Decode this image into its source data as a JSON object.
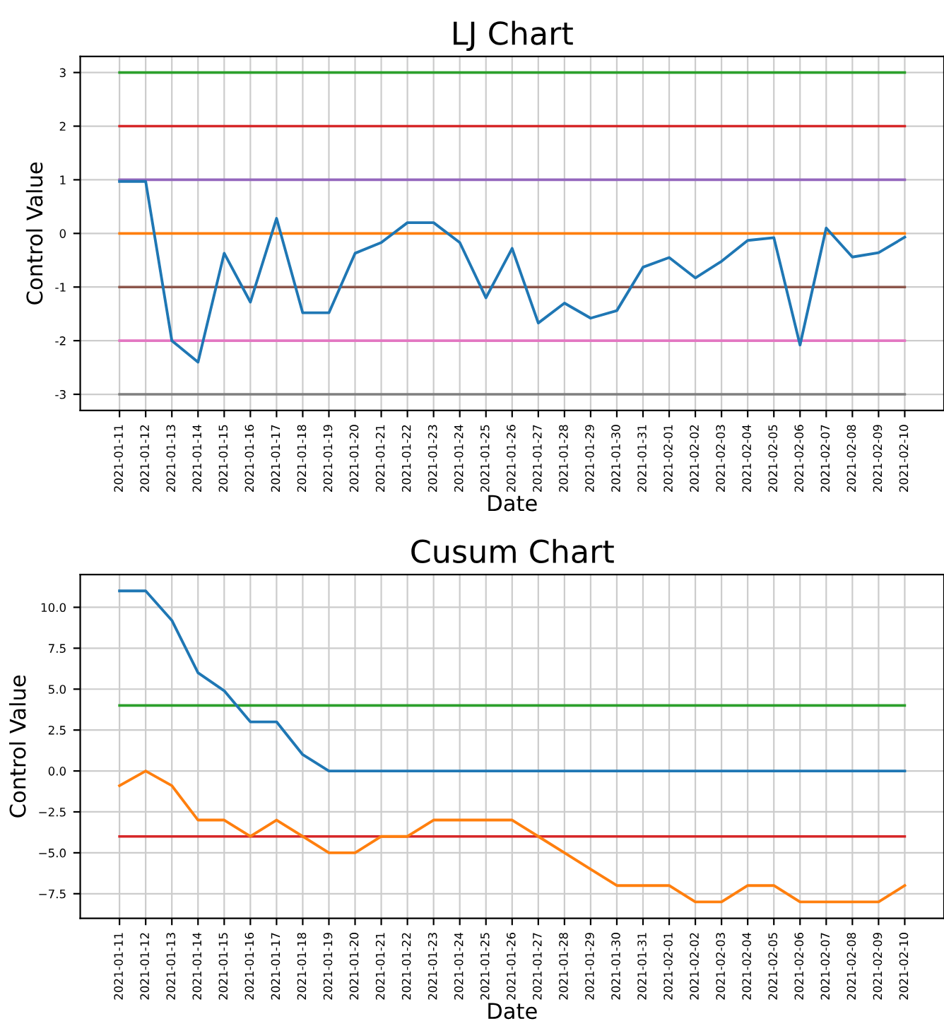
{
  "chart_data": [
    {
      "type": "line",
      "title": "LJ Chart",
      "xlabel": "Date",
      "ylabel": "Control Value",
      "categories": [
        "2021-01-11",
        "2021-01-12",
        "2021-01-13",
        "2021-01-14",
        "2021-01-15",
        "2021-01-16",
        "2021-01-17",
        "2021-01-18",
        "2021-01-19",
        "2021-01-20",
        "2021-01-21",
        "2021-01-22",
        "2021-01-23",
        "2021-01-24",
        "2021-01-25",
        "2021-01-26",
        "2021-01-27",
        "2021-01-28",
        "2021-01-29",
        "2021-01-30",
        "2021-01-31",
        "2021-02-01",
        "2021-02-02",
        "2021-02-03",
        "2021-02-04",
        "2021-02-05",
        "2021-02-06",
        "2021-02-07",
        "2021-02-08",
        "2021-02-09",
        "2021-02-10"
      ],
      "series": [
        {
          "color": "#1f77b4",
          "values": [
            0.97,
            0.97,
            -2.0,
            -2.4,
            -0.37,
            -1.28,
            0.28,
            -1.48,
            -1.48,
            -0.37,
            -0.17,
            0.2,
            0.2,
            -0.17,
            -1.2,
            -0.28,
            -1.67,
            -1.3,
            -1.58,
            -1.44,
            -0.63,
            -0.45,
            -0.83,
            -0.52,
            -0.13,
            -0.08,
            -2.08,
            0.1,
            -0.44,
            -0.36,
            -0.07
          ]
        }
      ],
      "ref_lines": [
        {
          "axis": "y",
          "value": 3,
          "color": "#2ca02c"
        },
        {
          "axis": "y",
          "value": 2,
          "color": "#d62728"
        },
        {
          "axis": "y",
          "value": 1,
          "color": "#9467bd"
        },
        {
          "axis": "y",
          "value": 0,
          "color": "#ff7f0e"
        },
        {
          "axis": "y",
          "value": -1,
          "color": "#8c564b"
        },
        {
          "axis": "y",
          "value": -2,
          "color": "#e377c2"
        },
        {
          "axis": "y",
          "value": -3,
          "color": "#7f7f7f"
        }
      ],
      "ylim": [
        -3.3,
        3.3
      ],
      "yticks": [
        -3,
        -2,
        -1,
        0,
        1,
        2,
        3
      ],
      "grid": true
    },
    {
      "type": "line",
      "title": "Cusum Chart",
      "xlabel": "Date",
      "ylabel": "Control Value",
      "categories": [
        "2021-01-11",
        "2021-01-12",
        "2021-01-13",
        "2021-01-14",
        "2021-01-15",
        "2021-01-16",
        "2021-01-17",
        "2021-01-18",
        "2021-01-19",
        "2021-01-20",
        "2021-01-21",
        "2021-01-22",
        "2021-01-23",
        "2021-01-24",
        "2021-01-25",
        "2021-01-26",
        "2021-01-27",
        "2021-01-28",
        "2021-01-29",
        "2021-01-30",
        "2021-01-31",
        "2021-02-01",
        "2021-02-02",
        "2021-02-03",
        "2021-02-04",
        "2021-02-05",
        "2021-02-06",
        "2021-02-07",
        "2021-02-08",
        "2021-02-09",
        "2021-02-10"
      ],
      "series": [
        {
          "color": "#1f77b4",
          "values": [
            11.0,
            11.0,
            9.2,
            6.0,
            4.9,
            3.0,
            3.0,
            1.0,
            0,
            0,
            0,
            0,
            0,
            0,
            0,
            0,
            0,
            0,
            0,
            0,
            0,
            0,
            0,
            0,
            0,
            0,
            0,
            0,
            0,
            0,
            0
          ]
        },
        {
          "color": "#ff7f0e",
          "values": [
            -0.9,
            0,
            -0.9,
            -3,
            -3,
            -4,
            -3,
            -4,
            -5,
            -5,
            -4,
            -4,
            -3,
            -3,
            -3,
            -3,
            -4,
            -5,
            -6,
            -7,
            -7,
            -7,
            -8,
            -8,
            -7,
            -7,
            -8,
            -8,
            -8,
            -8,
            -7
          ]
        }
      ],
      "ref_lines": [
        {
          "axis": "y",
          "value": 4,
          "color": "#2ca02c"
        },
        {
          "axis": "y",
          "value": -4,
          "color": "#d62728"
        }
      ],
      "ylim": [
        -9,
        12
      ],
      "yticks": [
        {
          "value": -7.5,
          "label": "−7.5"
        },
        {
          "value": -5,
          "label": "−5.0"
        },
        {
          "value": -2.5,
          "label": "−2.5"
        },
        {
          "value": 0,
          "label": "0.0"
        },
        {
          "value": 2.5,
          "label": "2.5"
        },
        {
          "value": 5,
          "label": "5.0"
        },
        {
          "value": 7.5,
          "label": "7.5"
        },
        {
          "value": 10,
          "label": "10.0"
        }
      ],
      "grid": true
    }
  ]
}
